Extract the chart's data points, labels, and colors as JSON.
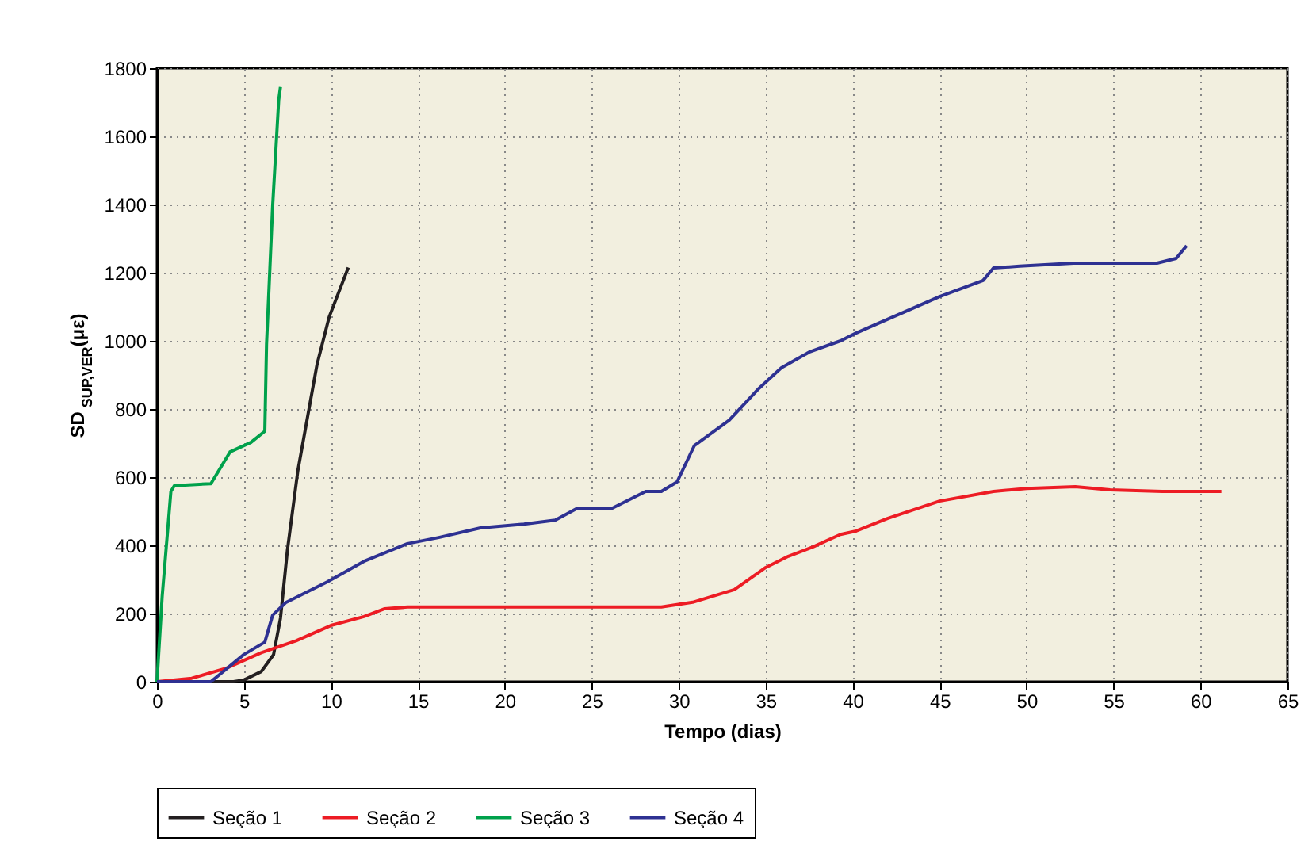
{
  "chart_data": {
    "type": "line",
    "xlabel": "Tempo (dias)",
    "ylabel": "SD$_{SUP,VER}$(με)",
    "xlim": [
      0,
      65
    ],
    "xticks": [
      0,
      5,
      10,
      15,
      20,
      25,
      30,
      35,
      40,
      45,
      50,
      55,
      60,
      65
    ],
    "ylim": [
      0,
      1800
    ],
    "yticks": [
      0,
      200,
      400,
      600,
      800,
      1000,
      1200,
      1400,
      1600,
      1800
    ],
    "grid": true,
    "legend": "bottom",
    "series": [
      {
        "name": "Seção 1",
        "color": "#231f20",
        "x": [
          0,
          4.4,
          5,
          6,
          6.7,
          7.1,
          7.5,
          8.1,
          9.2,
          9.9,
          11
        ],
        "values": [
          0,
          0,
          5,
          30,
          79,
          186,
          386,
          619,
          930,
          1070,
          1215
        ]
      },
      {
        "name": "Seção 2",
        "color": "#ed1c24",
        "x": [
          0,
          2,
          4,
          6,
          8,
          10,
          11.9,
          13.1,
          14.4,
          29,
          30.8,
          33.2,
          35,
          36.3,
          37.7,
          39.3,
          40.2,
          42,
          45,
          48.1,
          50,
          52.8,
          54.8,
          57.8,
          61.2
        ],
        "values": [
          0,
          10,
          40,
          85,
          120,
          165,
          191,
          214,
          219,
          219,
          233,
          270,
          335,
          368,
          395,
          432,
          442,
          479,
          530,
          558,
          567,
          572,
          563,
          558,
          558
        ]
      },
      {
        "name": "Seção 3",
        "color": "#00a14b",
        "x": [
          0,
          0.3,
          0.8,
          1,
          3.1,
          4.2,
          5.4,
          6.2,
          6.3,
          6.65,
          7,
          7.1
        ],
        "values": [
          0,
          250,
          558,
          575,
          581,
          674,
          702,
          735,
          990,
          1395,
          1707,
          1745
        ]
      },
      {
        "name": "Seção 4",
        "color": "#2e3192",
        "x": [
          0,
          3.1,
          5,
          6.2,
          6.65,
          7.4,
          9.8,
          11.9,
          14.4,
          16.2,
          18.6,
          21.1,
          22.9,
          24.1,
          26.1,
          28.1,
          29,
          29.9,
          30.9,
          32.9,
          34.6,
          35.9,
          37.5,
          39.3,
          40.2,
          45,
          47.5,
          48.1,
          49.6,
          52.7,
          57.5,
          58.6,
          59.2
        ],
        "values": [
          0,
          0,
          80,
          116,
          195,
          232,
          293,
          353,
          405,
          423,
          451,
          462,
          474,
          507,
          507,
          558,
          558,
          586,
          693,
          767,
          860,
          921,
          967,
          1000,
          1023,
          1130,
          1177,
          1214,
          1219,
          1228,
          1228,
          1242,
          1279
        ]
      }
    ]
  }
}
